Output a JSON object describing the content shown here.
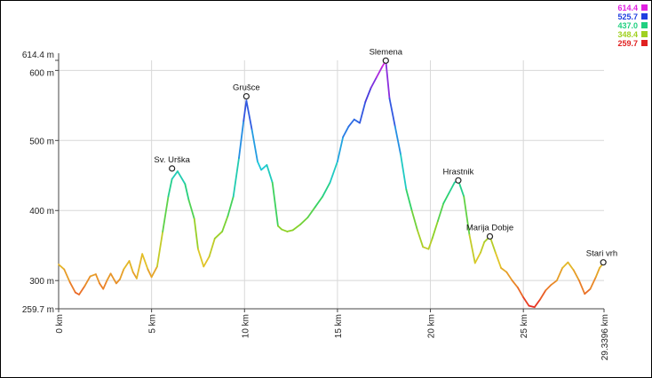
{
  "chart_data": {
    "type": "line",
    "title": "",
    "xlabel": "",
    "ylabel": "",
    "x_unit": "km",
    "y_unit": "m",
    "xlim": [
      0,
      29.3396
    ],
    "ylim": [
      259.7,
      614.4
    ],
    "x_ticks": [
      {
        "value": 0,
        "label": "0 km"
      },
      {
        "value": 5,
        "label": "5 km"
      },
      {
        "value": 10,
        "label": "10 km"
      },
      {
        "value": 15,
        "label": "15 km"
      },
      {
        "value": 20,
        "label": "20 km"
      },
      {
        "value": 25,
        "label": "25 km"
      },
      {
        "value": 29.3396,
        "label": "29.3396 km"
      }
    ],
    "y_ticks": [
      {
        "value": 259.7,
        "label": "259.7 m"
      },
      {
        "value": 300,
        "label": "300 m"
      },
      {
        "value": 400,
        "label": "400 m"
      },
      {
        "value": 500,
        "label": "500 m"
      },
      {
        "value": 600,
        "label": "600 m"
      },
      {
        "value": 614.4,
        "label": "614.4 m"
      }
    ],
    "grid": true,
    "legend_position": "top-right",
    "legend": [
      {
        "label": "614.4",
        "color": "#e020e0"
      },
      {
        "label": "525.7",
        "color": "#2040e0"
      },
      {
        "label": "437.0",
        "color": "#20d080"
      },
      {
        "label": "348.4",
        "color": "#a0d020"
      },
      {
        "label": "259.7",
        "color": "#e02020"
      }
    ],
    "annotations": [
      {
        "label": "Sv. Urška",
        "x": 6.1,
        "y": 460
      },
      {
        "label": "Grušce",
        "x": 10.1,
        "y": 563
      },
      {
        "label": "Slemena",
        "x": 17.6,
        "y": 614
      },
      {
        "label": "Hrastnik",
        "x": 21.5,
        "y": 443
      },
      {
        "label": "Marija Dobje",
        "x": 23.2,
        "y": 363
      },
      {
        "label": "Stari vrh",
        "x": 29.3,
        "y": 326
      }
    ],
    "series": [
      {
        "x": [
          0,
          0.3,
          0.6,
          0.9,
          1.1,
          1.4,
          1.7,
          2.0,
          2.2,
          2.4,
          2.6,
          2.8,
          3.1,
          3.3,
          3.5,
          3.8,
          4.0,
          4.2,
          4.5,
          4.8,
          5.0,
          5.3,
          5.6,
          5.9,
          6.1,
          6.4,
          6.8,
          7.0,
          7.3,
          7.5,
          7.8,
          8.1,
          8.4,
          8.8,
          9.1,
          9.4,
          9.7,
          9.95,
          10.1,
          10.4,
          10.7,
          10.9,
          11.2,
          11.5,
          11.8,
          12.0,
          12.3,
          12.6,
          13.0,
          13.4,
          13.8,
          14.2,
          14.6,
          15.0,
          15.3,
          15.6,
          15.9,
          16.2,
          16.5,
          16.8,
          17.1,
          17.4,
          17.6,
          17.8,
          18.1,
          18.4,
          18.7,
          19.0,
          19.3,
          19.6,
          19.9,
          20.1,
          20.4,
          20.7,
          21.0,
          21.3,
          21.5,
          21.8,
          22.1,
          22.4,
          22.7,
          22.9,
          23.2,
          23.5,
          23.8,
          24.1,
          24.4,
          24.7,
          25.0,
          25.3,
          25.6,
          25.9,
          26.2,
          26.5,
          26.8,
          27.1,
          27.4,
          27.7,
          28.0,
          28.3,
          28.6,
          28.9,
          29.1,
          29.3396
        ],
        "y": [
          323,
          316,
          298,
          283,
          280,
          292,
          306,
          309,
          296,
          288,
          300,
          310,
          296,
          302,
          316,
          328,
          312,
          303,
          338,
          316,
          305,
          320,
          370,
          420,
          445,
          456,
          438,
          415,
          388,
          345,
          320,
          334,
          360,
          370,
          392,
          420,
          475,
          528,
          557,
          515,
          470,
          458,
          465,
          440,
          378,
          373,
          370,
          372,
          380,
          390,
          405,
          420,
          440,
          470,
          505,
          520,
          530,
          525,
          555,
          575,
          590,
          605,
          614,
          560,
          520,
          480,
          430,
          400,
          372,
          348,
          345,
          360,
          385,
          410,
          425,
          440,
          443,
          420,
          365,
          325,
          340,
          355,
          363,
          340,
          318,
          312,
          300,
          290,
          276,
          264,
          262,
          273,
          286,
          294,
          300,
          318,
          326,
          315,
          300,
          281,
          288,
          305,
          318,
          326
        ]
      }
    ]
  }
}
